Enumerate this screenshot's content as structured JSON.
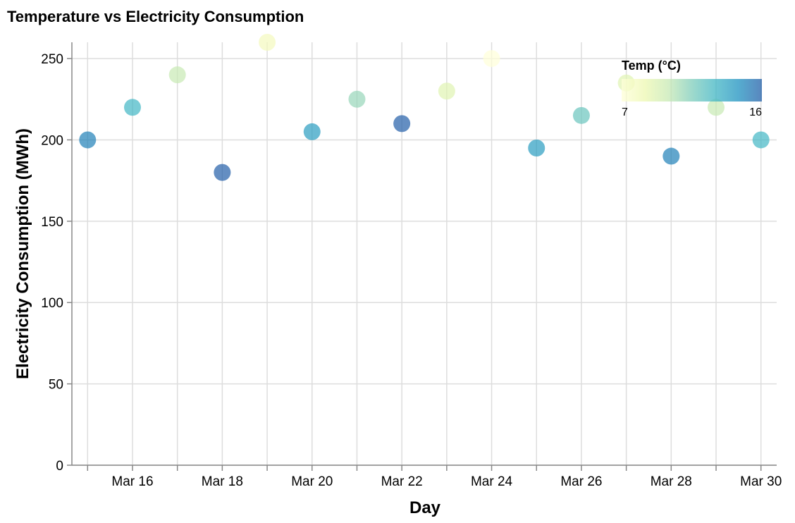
{
  "chart_data": {
    "type": "scatter",
    "title": "Temperature vs Electricity Consumption",
    "xlabel": "Day",
    "ylabel": "Electricity Consumption (MWh)",
    "x_tick_labels": [
      "Mar 16",
      "Mar 18",
      "Mar 20",
      "Mar 22",
      "Mar 24",
      "Mar 26",
      "Mar 28",
      "Mar 30"
    ],
    "y_ticks": [
      0,
      50,
      100,
      150,
      200,
      250
    ],
    "ylim": [
      0,
      260
    ],
    "xlim": [
      "2023-03-15",
      "2023-03-30"
    ],
    "grid": true,
    "legend": {
      "title": "Temp (°C)",
      "min": 7,
      "max": 16,
      "min_label": "7",
      "max_label": "16",
      "placement": "top-right",
      "colors": [
        "#ffffd9",
        "#edf8b1",
        "#c7e9b4",
        "#7fcdbb",
        "#41b6c4",
        "#1d91c0",
        "#225ea8"
      ]
    },
    "points": [
      {
        "date": "2023-03-15",
        "consumption": 200,
        "temp": 15
      },
      {
        "date": "2023-03-16",
        "consumption": 220,
        "temp": 13
      },
      {
        "date": "2023-03-17",
        "consumption": 240,
        "temp": 10
      },
      {
        "date": "2023-03-18",
        "consumption": 180,
        "temp": 16
      },
      {
        "date": "2023-03-19",
        "consumption": 260,
        "temp": 8
      },
      {
        "date": "2023-03-20",
        "consumption": 205,
        "temp": 14
      },
      {
        "date": "2023-03-21",
        "consumption": 225,
        "temp": 11
      },
      {
        "date": "2023-03-22",
        "consumption": 210,
        "temp": 16
      },
      {
        "date": "2023-03-23",
        "consumption": 230,
        "temp": 9
      },
      {
        "date": "2023-03-24",
        "consumption": 250,
        "temp": 7
      },
      {
        "date": "2023-03-25",
        "consumption": 195,
        "temp": 14
      },
      {
        "date": "2023-03-26",
        "consumption": 215,
        "temp": 12
      },
      {
        "date": "2023-03-27",
        "consumption": 235,
        "temp": 9
      },
      {
        "date": "2023-03-28",
        "consumption": 190,
        "temp": 15
      },
      {
        "date": "2023-03-29",
        "consumption": 220,
        "temp": 10
      },
      {
        "date": "2023-03-30",
        "consumption": 200,
        "temp": 13
      }
    ]
  }
}
